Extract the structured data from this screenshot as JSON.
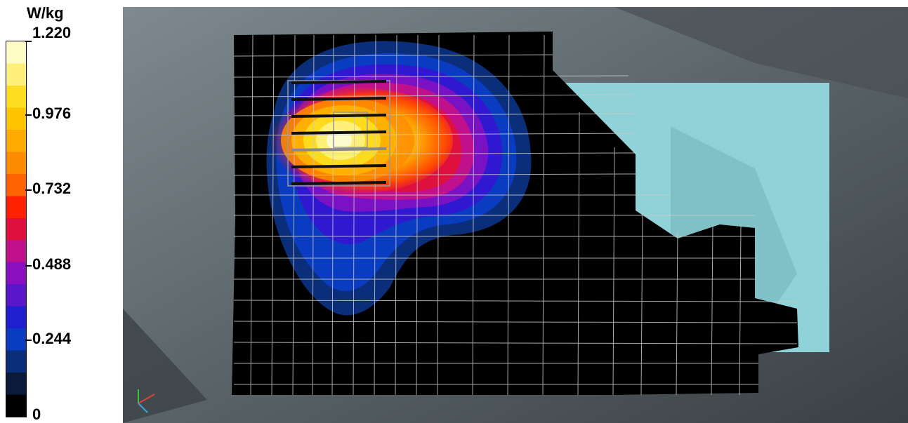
{
  "legend": {
    "unit": "W/kg",
    "tick_labels": [
      "1.220",
      "0.976",
      "0.732",
      "0.488",
      "0.244",
      "0"
    ],
    "colors": [
      "#000000",
      "#0b1a3a",
      "#0b2e7a",
      "#0a3cc2",
      "#1f1fd0",
      "#5a16c8",
      "#8c0fbf",
      "#c0108c",
      "#e0103e",
      "#ff2200",
      "#ff6400",
      "#ff8c00",
      "#ffaa00",
      "#ffc400",
      "#ffdd22",
      "#fff07a",
      "#fffbc4"
    ]
  },
  "scene": {
    "background": "#5d6569",
    "phantom_color": "#000000",
    "overlay_color": "#8fd3d8",
    "grid_color": "#c8c8c8",
    "axes_icon": "coordinate-axes-icon"
  }
}
